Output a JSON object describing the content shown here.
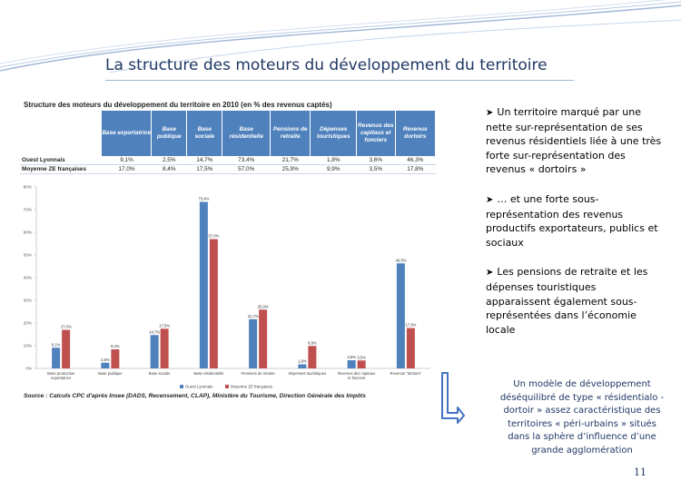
{
  "slide": {
    "title": "La structure des moteurs du développement du territoire",
    "page_number": "11"
  },
  "figure": {
    "title": "Structure des moteurs du développement du territoire en 2010 (en % des revenus captés)",
    "source": "Source : Calculs CPC d'après Insee (DADS, Recensement, CLAP), Ministère du Tourisme, Direction Générale des Impôts",
    "table": {
      "columns": [
        "Base exportatrice",
        "Base publique",
        "Base sociale",
        "Base résidentielle",
        "Pensions de retraite",
        "Dépenses touristiques",
        "Revenus des capitaux et fonciers",
        "Revenus dortoirs"
      ],
      "rows": [
        {
          "label": "Ouest Lyonnais",
          "values": [
            "9,1%",
            "2,5%",
            "14,7%",
            "73,4%",
            "21,7%",
            "1,8%",
            "3,6%",
            "46,3%"
          ]
        },
        {
          "label": "Moyenne ZE françaises",
          "values": [
            "17,0%",
            "8,4%",
            "17,5%",
            "57,0%",
            "25,9%",
            "9,9%",
            "3,5%",
            "17,8%"
          ]
        }
      ]
    }
  },
  "chart_data": {
    "type": "bar",
    "categories": [
      "Base productive exportatrice",
      "Base publique",
      "Base sociale",
      "Base résidentielle",
      "Pensions de retraite",
      "Dépenses touristiques",
      "Revenus des capitaux et fonciers",
      "Revenus \"dortoirs\""
    ],
    "series": [
      {
        "name": "Ouest Lyonnais",
        "color": "#4f81bd",
        "values": [
          9.1,
          2.5,
          14.7,
          73.4,
          21.7,
          1.8,
          3.6,
          46.3
        ],
        "labels": [
          "9,1%",
          "2,5%",
          "14,7%",
          "73,4%",
          "21,7%",
          "1,8%",
          "3,6%",
          "46,3%"
        ]
      },
      {
        "name": "Moyenne ZE françaises",
        "color": "#c0504d",
        "values": [
          17.0,
          8.4,
          17.5,
          57.0,
          25.9,
          9.9,
          3.5,
          17.8
        ],
        "labels": [
          "17,0%",
          "8,4%",
          "17,5%",
          "57,0%",
          "25,9%",
          "9,9%",
          "3,5%",
          "17,8%"
        ]
      }
    ],
    "yticks": [
      0,
      10,
      20,
      30,
      40,
      50,
      60,
      70,
      80
    ],
    "ytick_labels": [
      "0%",
      "10%",
      "20%",
      "30%",
      "40%",
      "50%",
      "60%",
      "70%",
      "80%"
    ],
    "ylim": [
      0,
      80
    ],
    "grid": false,
    "legend_position": "bottom"
  },
  "bullets": [
    "Un territoire marqué par une nette sur-représentation de ses revenus résidentiels liée à une très forte sur-représentation des revenus « dortoirs »",
    "… et une forte sous-représentation des revenus productifs exportateurs, publics et sociaux",
    "Les pensions de retraite et les dépenses touristiques apparaissent également sous-représentées dans l’économie locale"
  ],
  "model_text": "Un modèle de développement déséquilibré de type « résidentialo -dortoir » assez caractéristique des territoires « péri-urbains » situés dans la sphère d’influence d’une grande agglomération",
  "colors": {
    "title": "#1f3864",
    "table_header": "#4f81bd",
    "series_1": "#4f81bd",
    "series_2": "#c0504d",
    "bracket": "#4472c4"
  }
}
